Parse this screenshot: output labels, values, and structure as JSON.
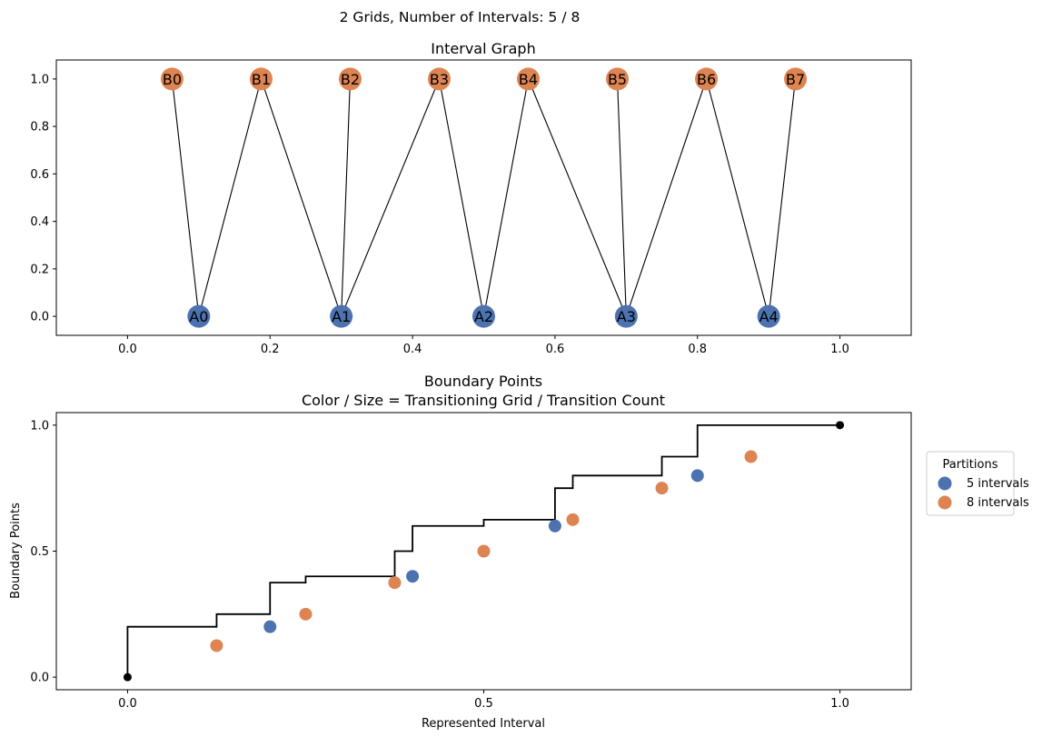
{
  "suptitle": "2 Grids, Number of Intervals: 5 / 8",
  "colors": {
    "blue": "#4c72b0",
    "orange": "#dd8452",
    "black": "#000000"
  },
  "chart_data": [
    {
      "type": "scatter",
      "title": "Interval Graph",
      "xlabel": "",
      "ylabel": "",
      "xlim": [
        -0.1,
        1.1
      ],
      "ylim": [
        -0.08,
        1.08
      ],
      "xticks": [
        0.0,
        0.2,
        0.4,
        0.6,
        0.8,
        1.0
      ],
      "xtick_labels": [
        "0.0",
        "0.2",
        "0.4",
        "0.6",
        "0.8",
        "1.0"
      ],
      "yticks": [
        0.0,
        0.2,
        0.4,
        0.6,
        0.8,
        1.0
      ],
      "ytick_labels": [
        "0.0",
        "0.2",
        "0.4",
        "0.6",
        "0.8",
        "1.0"
      ],
      "grid": false,
      "nodes": [
        {
          "id": "A0",
          "x": 0.1,
          "y": 0,
          "group": "A"
        },
        {
          "id": "A1",
          "x": 0.3,
          "y": 0,
          "group": "A"
        },
        {
          "id": "A2",
          "x": 0.5,
          "y": 0,
          "group": "A"
        },
        {
          "id": "A3",
          "x": 0.7,
          "y": 0,
          "group": "A"
        },
        {
          "id": "A4",
          "x": 0.9,
          "y": 0,
          "group": "A"
        },
        {
          "id": "B0",
          "x": 0.0625,
          "y": 1,
          "group": "B"
        },
        {
          "id": "B1",
          "x": 0.1875,
          "y": 1,
          "group": "B"
        },
        {
          "id": "B2",
          "x": 0.3125,
          "y": 1,
          "group": "B"
        },
        {
          "id": "B3",
          "x": 0.4375,
          "y": 1,
          "group": "B"
        },
        {
          "id": "B4",
          "x": 0.5625,
          "y": 1,
          "group": "B"
        },
        {
          "id": "B5",
          "x": 0.6875,
          "y": 1,
          "group": "B"
        },
        {
          "id": "B6",
          "x": 0.8125,
          "y": 1,
          "group": "B"
        },
        {
          "id": "B7",
          "x": 0.9375,
          "y": 1,
          "group": "B"
        }
      ],
      "edges": [
        [
          "A0",
          "B0"
        ],
        [
          "A0",
          "B1"
        ],
        [
          "A1",
          "B1"
        ],
        [
          "A1",
          "B2"
        ],
        [
          "A1",
          "B3"
        ],
        [
          "A2",
          "B3"
        ],
        [
          "A2",
          "B4"
        ],
        [
          "A3",
          "B4"
        ],
        [
          "A3",
          "B5"
        ],
        [
          "A3",
          "B6"
        ],
        [
          "A4",
          "B6"
        ],
        [
          "A4",
          "B7"
        ]
      ]
    },
    {
      "type": "line",
      "title": "Boundary Points",
      "subtitle": "Color / Size = Transitioning Grid / Transition Count",
      "xlabel": "Represented Interval",
      "ylabel": "Boundary Points",
      "xlim": [
        -0.1,
        1.1
      ],
      "ylim": [
        -0.05,
        1.05
      ],
      "xticks": [
        0.0,
        0.5,
        1.0
      ],
      "xtick_labels": [
        "0.0",
        "0.5",
        "1.0"
      ],
      "yticks": [
        0.0,
        0.5,
        1.0
      ],
      "ytick_labels": [
        "0.0",
        "0.5",
        "1.0"
      ],
      "grid": false,
      "legend": {
        "title": "Partitions",
        "placement": "outside-right",
        "entries": [
          "5 intervals",
          "8 intervals"
        ]
      },
      "step_points": [
        {
          "x": 0.0,
          "y": 0.125
        },
        {
          "x": 0.125,
          "y": 0.2
        },
        {
          "x": 0.2,
          "y": 0.25
        },
        {
          "x": 0.25,
          "y": 0.375
        },
        {
          "x": 0.375,
          "y": 0.4
        },
        {
          "x": 0.4,
          "y": 0.5
        },
        {
          "x": 0.5,
          "y": 0.6
        },
        {
          "x": 0.6,
          "y": 0.625
        },
        {
          "x": 0.625,
          "y": 0.75
        },
        {
          "x": 0.75,
          "y": 0.8
        },
        {
          "x": 0.8,
          "y": 0.875
        },
        {
          "x": 0.875,
          "y": 1.0
        },
        {
          "x": 1.0,
          "y": 1.0
        }
      ],
      "endpoints": [
        {
          "x": 0.0,
          "y": 0.0
        },
        {
          "x": 1.0,
          "y": 1.0
        }
      ],
      "series": [
        {
          "name": "5 intervals",
          "points": [
            {
              "x": 0.2,
              "y": 0.2
            },
            {
              "x": 0.4,
              "y": 0.4
            },
            {
              "x": 0.6,
              "y": 0.6
            },
            {
              "x": 0.8,
              "y": 0.8
            }
          ]
        },
        {
          "name": "8 intervals",
          "points": [
            {
              "x": 0.125,
              "y": 0.125
            },
            {
              "x": 0.25,
              "y": 0.25
            },
            {
              "x": 0.375,
              "y": 0.375
            },
            {
              "x": 0.5,
              "y": 0.5
            },
            {
              "x": 0.625,
              "y": 0.625
            },
            {
              "x": 0.75,
              "y": 0.75
            },
            {
              "x": 0.875,
              "y": 0.875
            }
          ]
        }
      ]
    }
  ]
}
